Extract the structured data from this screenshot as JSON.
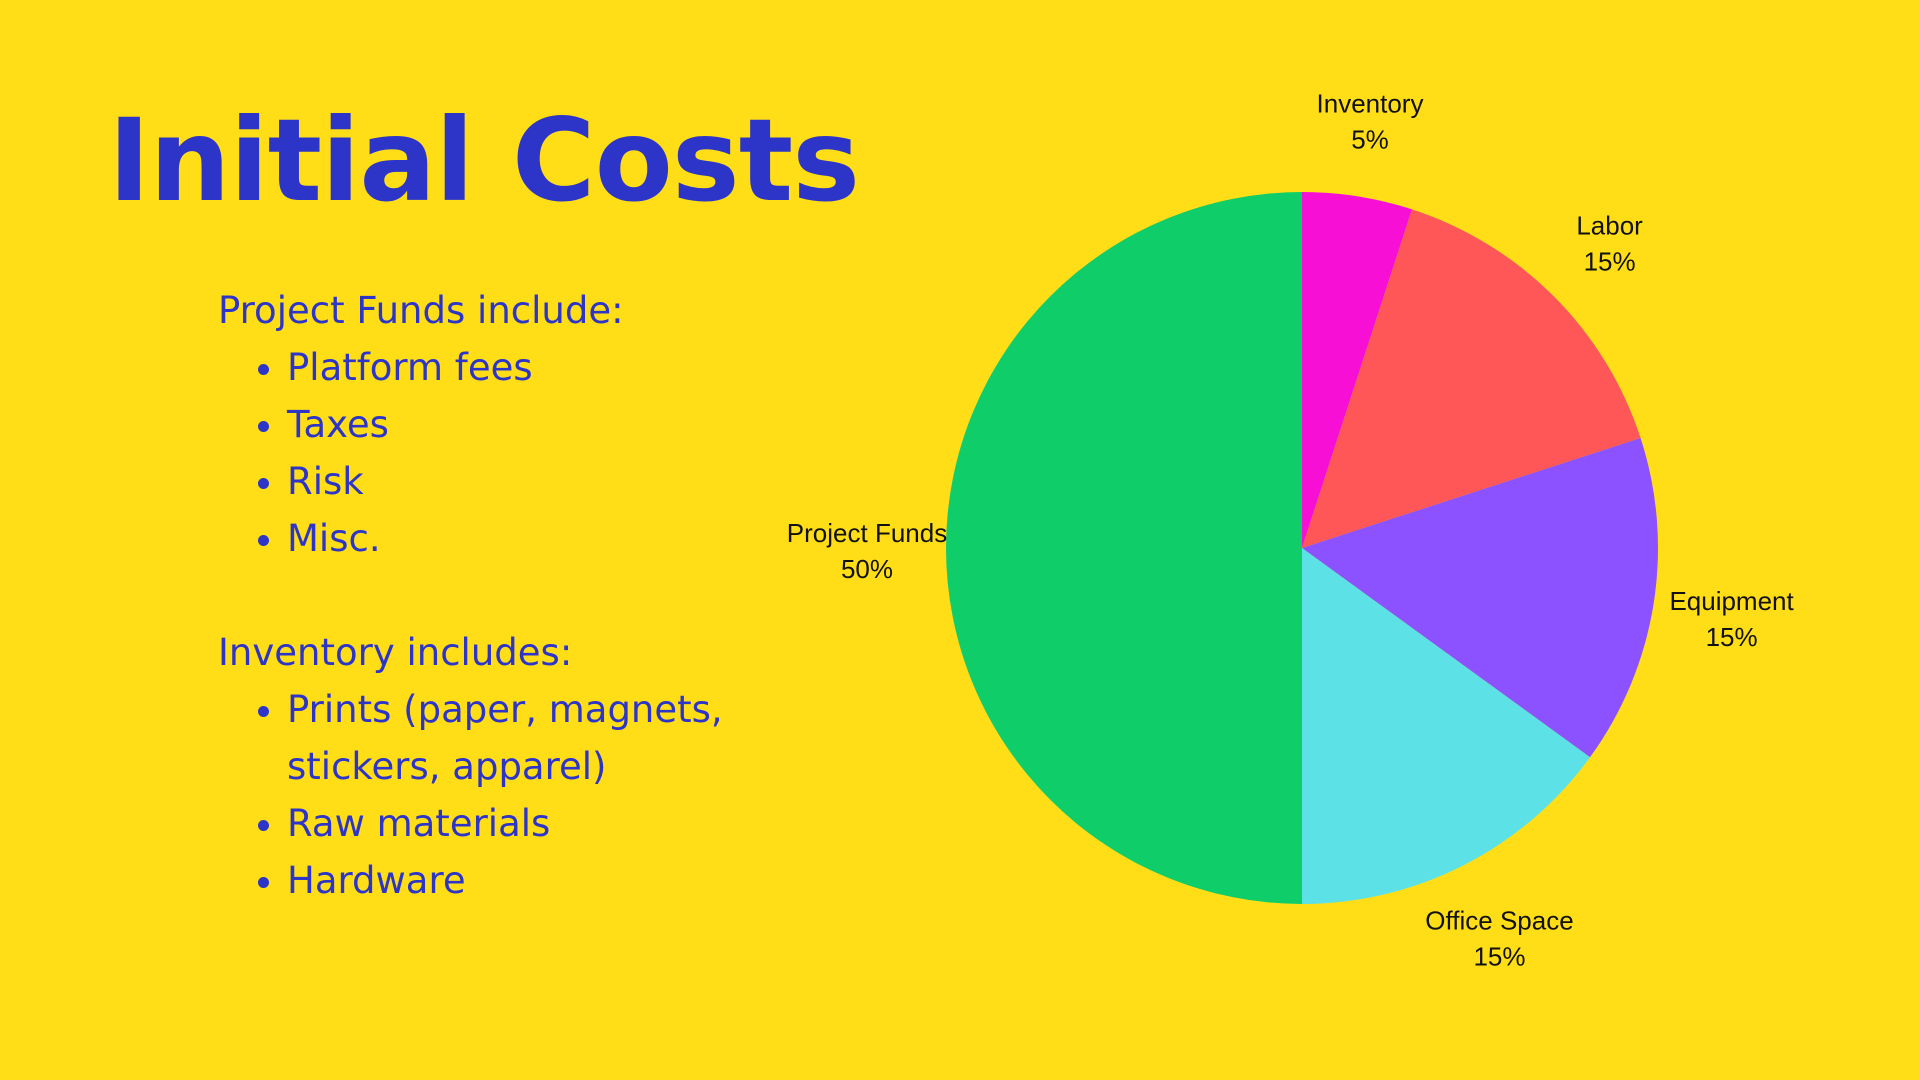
{
  "title": "Initial Costs",
  "notes": {
    "project_funds": {
      "heading": "Project Funds include:",
      "items": [
        "Platform fees",
        "Taxes",
        "Risk",
        "Misc."
      ]
    },
    "inventory": {
      "heading": "Inventory includes:",
      "items": [
        "Prints (paper, magnets, stickers, apparel)",
        "Raw materials",
        "Hardware"
      ]
    }
  },
  "chart_data": {
    "type": "pie",
    "title": "",
    "start_angle_deg": 0,
    "direction": "clockwise",
    "labels_outside": true,
    "slices": [
      {
        "label": "Inventory",
        "value": 5,
        "display": "5%",
        "color": "#F70FD6"
      },
      {
        "label": "Labor",
        "value": 15,
        "display": "15%",
        "color": "#FF5757"
      },
      {
        "label": "Equipment",
        "value": 15,
        "display": "15%",
        "color": "#8C52FF"
      },
      {
        "label": "Office Space",
        "value": 15,
        "display": "15%",
        "color": "#5CE1E6"
      },
      {
        "label": "Project Funds",
        "value": 50,
        "display": "50%",
        "color": "#0FCE6A"
      }
    ]
  }
}
